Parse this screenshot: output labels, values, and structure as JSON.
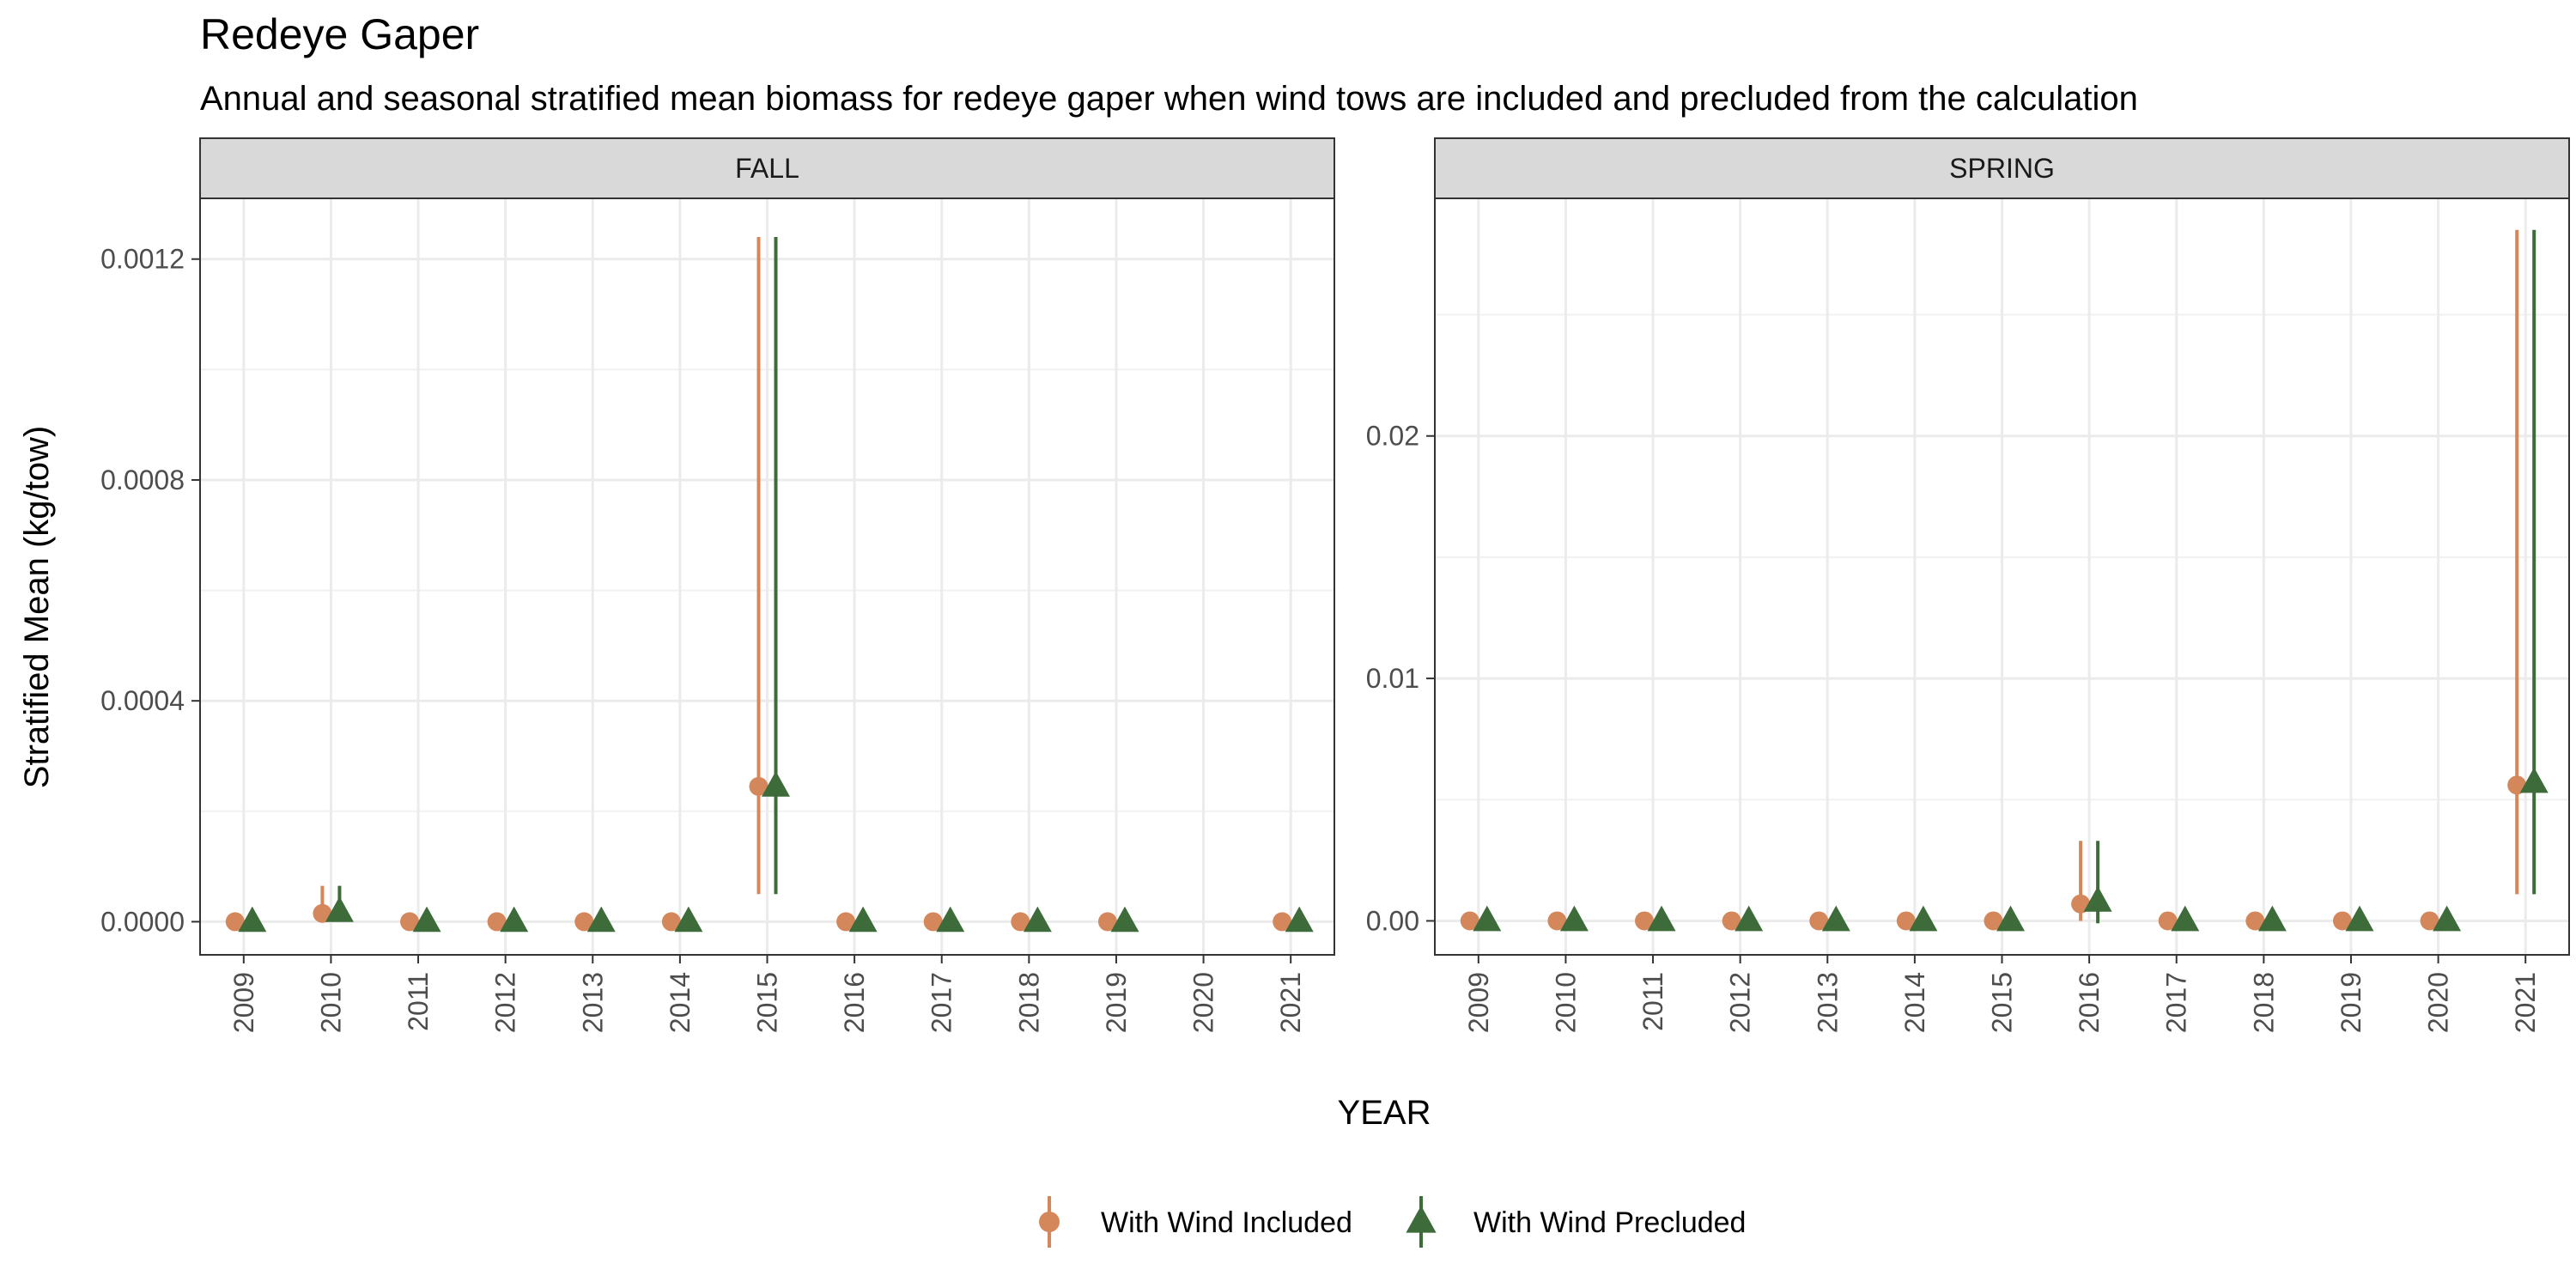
{
  "chart_data": {
    "type": "scatter",
    "title": "Redeye Gaper",
    "subtitle": "Annual and seasonal stratified mean biomass for redeye gaper when wind tows are included and precluded from the calculation",
    "xlabel": "YEAR",
    "ylabel": "Stratified Mean (kg/tow)",
    "legend_position": "bottom",
    "grid": true,
    "series_styles": [
      {
        "name": "With Wind Included",
        "color": "#D4875A",
        "marker": "circle"
      },
      {
        "name": "With Wind Precluded",
        "color": "#3D6B3A",
        "marker": "triangle"
      }
    ],
    "panels": [
      {
        "label": "FALL",
        "years": [
          "2009",
          "2010",
          "2011",
          "2012",
          "2013",
          "2014",
          "2015",
          "2016",
          "2017",
          "2018",
          "2019",
          "2020",
          "2021"
        ],
        "ylim": [
          -6e-05,
          0.00131
        ],
        "yticks": [
          0.0,
          0.0004,
          0.0008,
          0.0012
        ],
        "ytick_labels": [
          "0.0000",
          "0.0004",
          "0.0008",
          "0.0012"
        ],
        "series": [
          {
            "name": "With Wind Included",
            "points": [
              {
                "year": "2009",
                "value": 0.0,
                "low": 0.0,
                "high": 0.0
              },
              {
                "year": "2010",
                "value": 1.5e-05,
                "low": 0.0,
                "high": 6.5e-05
              },
              {
                "year": "2011",
                "value": 0.0,
                "low": 0.0,
                "high": 0.0
              },
              {
                "year": "2012",
                "value": 0.0,
                "low": 0.0,
                "high": 0.0
              },
              {
                "year": "2013",
                "value": 0.0,
                "low": 0.0,
                "high": 0.0
              },
              {
                "year": "2014",
                "value": 0.0,
                "low": 0.0,
                "high": 0.0
              },
              {
                "year": "2015",
                "value": 0.000245,
                "low": 5e-05,
                "high": 0.00124
              },
              {
                "year": "2016",
                "value": 0.0,
                "low": 0.0,
                "high": 0.0
              },
              {
                "year": "2017",
                "value": 0.0,
                "low": 0.0,
                "high": 0.0
              },
              {
                "year": "2018",
                "value": 0.0,
                "low": 0.0,
                "high": 0.0
              },
              {
                "year": "2019",
                "value": 0.0,
                "low": 0.0,
                "high": 0.0
              },
              {
                "year": "2021",
                "value": 0.0,
                "low": 0.0,
                "high": 0.0
              }
            ]
          },
          {
            "name": "With Wind Precluded",
            "points": [
              {
                "year": "2009",
                "value": 0.0,
                "low": 0.0,
                "high": 0.0
              },
              {
                "year": "2010",
                "value": 1.8e-05,
                "low": 0.0,
                "high": 6.5e-05
              },
              {
                "year": "2011",
                "value": 0.0,
                "low": 0.0,
                "high": 0.0
              },
              {
                "year": "2012",
                "value": 0.0,
                "low": 0.0,
                "high": 0.0
              },
              {
                "year": "2013",
                "value": 0.0,
                "low": 0.0,
                "high": 0.0
              },
              {
                "year": "2014",
                "value": 0.0,
                "low": 0.0,
                "high": 0.0
              },
              {
                "year": "2015",
                "value": 0.000245,
                "low": 5e-05,
                "high": 0.00124
              },
              {
                "year": "2016",
                "value": 0.0,
                "low": 0.0,
                "high": 0.0
              },
              {
                "year": "2017",
                "value": 0.0,
                "low": 0.0,
                "high": 0.0
              },
              {
                "year": "2018",
                "value": 0.0,
                "low": 0.0,
                "high": 0.0
              },
              {
                "year": "2019",
                "value": 0.0,
                "low": 0.0,
                "high": 0.0
              },
              {
                "year": "2021",
                "value": 0.0,
                "low": 0.0,
                "high": 0.0
              }
            ]
          }
        ]
      },
      {
        "label": "SPRING",
        "years": [
          "2009",
          "2010",
          "2011",
          "2012",
          "2013",
          "2014",
          "2015",
          "2016",
          "2017",
          "2018",
          "2019",
          "2020",
          "2021"
        ],
        "ylim": [
          -0.0014,
          0.0298
        ],
        "yticks": [
          0.0,
          0.01,
          0.02
        ],
        "ytick_labels": [
          "0.00",
          "0.01",
          "0.02"
        ],
        "series": [
          {
            "name": "With Wind Included",
            "points": [
              {
                "year": "2009",
                "value": 0.0,
                "low": 0.0,
                "high": 0.0
              },
              {
                "year": "2010",
                "value": 0.0,
                "low": 0.0,
                "high": 0.0
              },
              {
                "year": "2011",
                "value": 0.0,
                "low": 0.0,
                "high": 0.0
              },
              {
                "year": "2012",
                "value": 0.0,
                "low": 0.0,
                "high": 0.0
              },
              {
                "year": "2013",
                "value": 0.0,
                "low": 0.0,
                "high": 0.0
              },
              {
                "year": "2014",
                "value": 0.0,
                "low": 0.0,
                "high": 0.0
              },
              {
                "year": "2015",
                "value": 0.0,
                "low": 0.0,
                "high": 0.0
              },
              {
                "year": "2016",
                "value": 0.0007,
                "low": 0.0,
                "high": 0.0033
              },
              {
                "year": "2017",
                "value": 0.0,
                "low": 0.0,
                "high": 0.0
              },
              {
                "year": "2018",
                "value": 0.0,
                "low": 0.0,
                "high": 0.0
              },
              {
                "year": "2019",
                "value": 0.0,
                "low": 0.0,
                "high": 0.0
              },
              {
                "year": "2020",
                "value": 0.0,
                "low": 0.0,
                "high": 0.0
              },
              {
                "year": "2021",
                "value": 0.0056,
                "low": 0.0011,
                "high": 0.0285
              }
            ]
          },
          {
            "name": "With Wind Precluded",
            "points": [
              {
                "year": "2009",
                "value": 0.0,
                "low": 0.0,
                "high": 0.0
              },
              {
                "year": "2010",
                "value": 0.0,
                "low": 0.0,
                "high": 0.0
              },
              {
                "year": "2011",
                "value": 0.0,
                "low": 0.0,
                "high": 0.0
              },
              {
                "year": "2012",
                "value": 0.0,
                "low": 0.0,
                "high": 0.0
              },
              {
                "year": "2013",
                "value": 0.0,
                "low": 0.0,
                "high": 0.0
              },
              {
                "year": "2014",
                "value": 0.0,
                "low": 0.0,
                "high": 0.0
              },
              {
                "year": "2015",
                "value": 0.0,
                "low": 0.0,
                "high": 0.0
              },
              {
                "year": "2016",
                "value": 0.0008,
                "low": -0.0001,
                "high": 0.0033
              },
              {
                "year": "2017",
                "value": 0.0,
                "low": 0.0,
                "high": 0.0
              },
              {
                "year": "2018",
                "value": 0.0,
                "low": 0.0,
                "high": 0.0
              },
              {
                "year": "2019",
                "value": 0.0,
                "low": 0.0,
                "high": 0.0
              },
              {
                "year": "2020",
                "value": 0.0,
                "low": 0.0,
                "high": 0.0
              },
              {
                "year": "2021",
                "value": 0.0057,
                "low": 0.0011,
                "high": 0.0285
              }
            ]
          }
        ]
      }
    ]
  }
}
